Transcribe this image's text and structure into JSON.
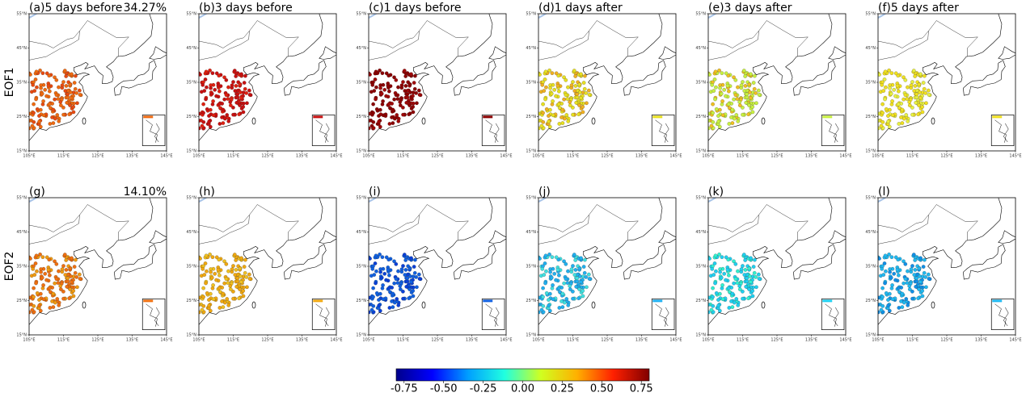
{
  "panels": [
    {
      "title": "(a)5 days before",
      "percent": "34.27%",
      "colors": [
        "#f06a10",
        "#e84a10"
      ]
    },
    {
      "title": "(b)3 days before",
      "colors": [
        "#c81010",
        "#e02010"
      ]
    },
    {
      "title": "(c)1 days before",
      "colors": [
        "#8b0000",
        "#a00808"
      ]
    },
    {
      "title": "(d)1 days after",
      "colors": [
        "#e8e020",
        "#f0b020"
      ]
    },
    {
      "title": "(e)3 days after",
      "colors": [
        "#c8f040",
        "#f0c020"
      ]
    },
    {
      "title": "(f)5 days after",
      "colors": [
        "#f0e020",
        "#e8f040"
      ]
    },
    {
      "title": "(g)",
      "percent": "14.10%",
      "colors": [
        "#f07010",
        "#f09a10"
      ]
    },
    {
      "title": "(h)",
      "colors": [
        "#f0a810",
        "#f0c020"
      ]
    },
    {
      "title": "(i)",
      "colors": [
        "#1060e0",
        "#0a40d8"
      ]
    },
    {
      "title": "(j)",
      "colors": [
        "#20b0f0",
        "#40e0e0"
      ]
    },
    {
      "title": "(k)",
      "colors": [
        "#20d0f0",
        "#30f0d0"
      ]
    },
    {
      "title": "(l)",
      "colors": [
        "#20b8f0",
        "#1090e8"
      ]
    }
  ],
  "row_labels": [
    "EOF1",
    "EOF2"
  ],
  "lat_ticks": [
    {
      "value": 55,
      "label": "55°N"
    },
    {
      "value": 45,
      "label": "45°N"
    },
    {
      "value": 35,
      "label": "35°N"
    },
    {
      "value": 25,
      "label": "25°N"
    },
    {
      "value": 15,
      "label": "15°N"
    }
  ],
  "lon_ticks": [
    {
      "value": 105,
      "label": "105°E"
    },
    {
      "value": 115,
      "label": "115°E"
    },
    {
      "value": 125,
      "label": "125°E"
    },
    {
      "value": 135,
      "label": "135°E"
    },
    {
      "value": 145,
      "label": "145°E"
    }
  ],
  "colorbar": {
    "clim": [
      -0.8,
      0.8
    ],
    "colormap": [
      "#00008b",
      "#0000ff",
      "#00a0ff",
      "#20ffe0",
      "#d0ff20",
      "#ffb000",
      "#ff2000",
      "#800000"
    ],
    "ticks": [
      -0.75,
      {
        "value": -0.5,
        "label": "-0.50"
      },
      -0.25,
      {
        "value": 0,
        "label": "0.00"
      },
      0.25,
      {
        "value": 0.5,
        "label": "0.50"
      },
      0.75
    ]
  }
}
